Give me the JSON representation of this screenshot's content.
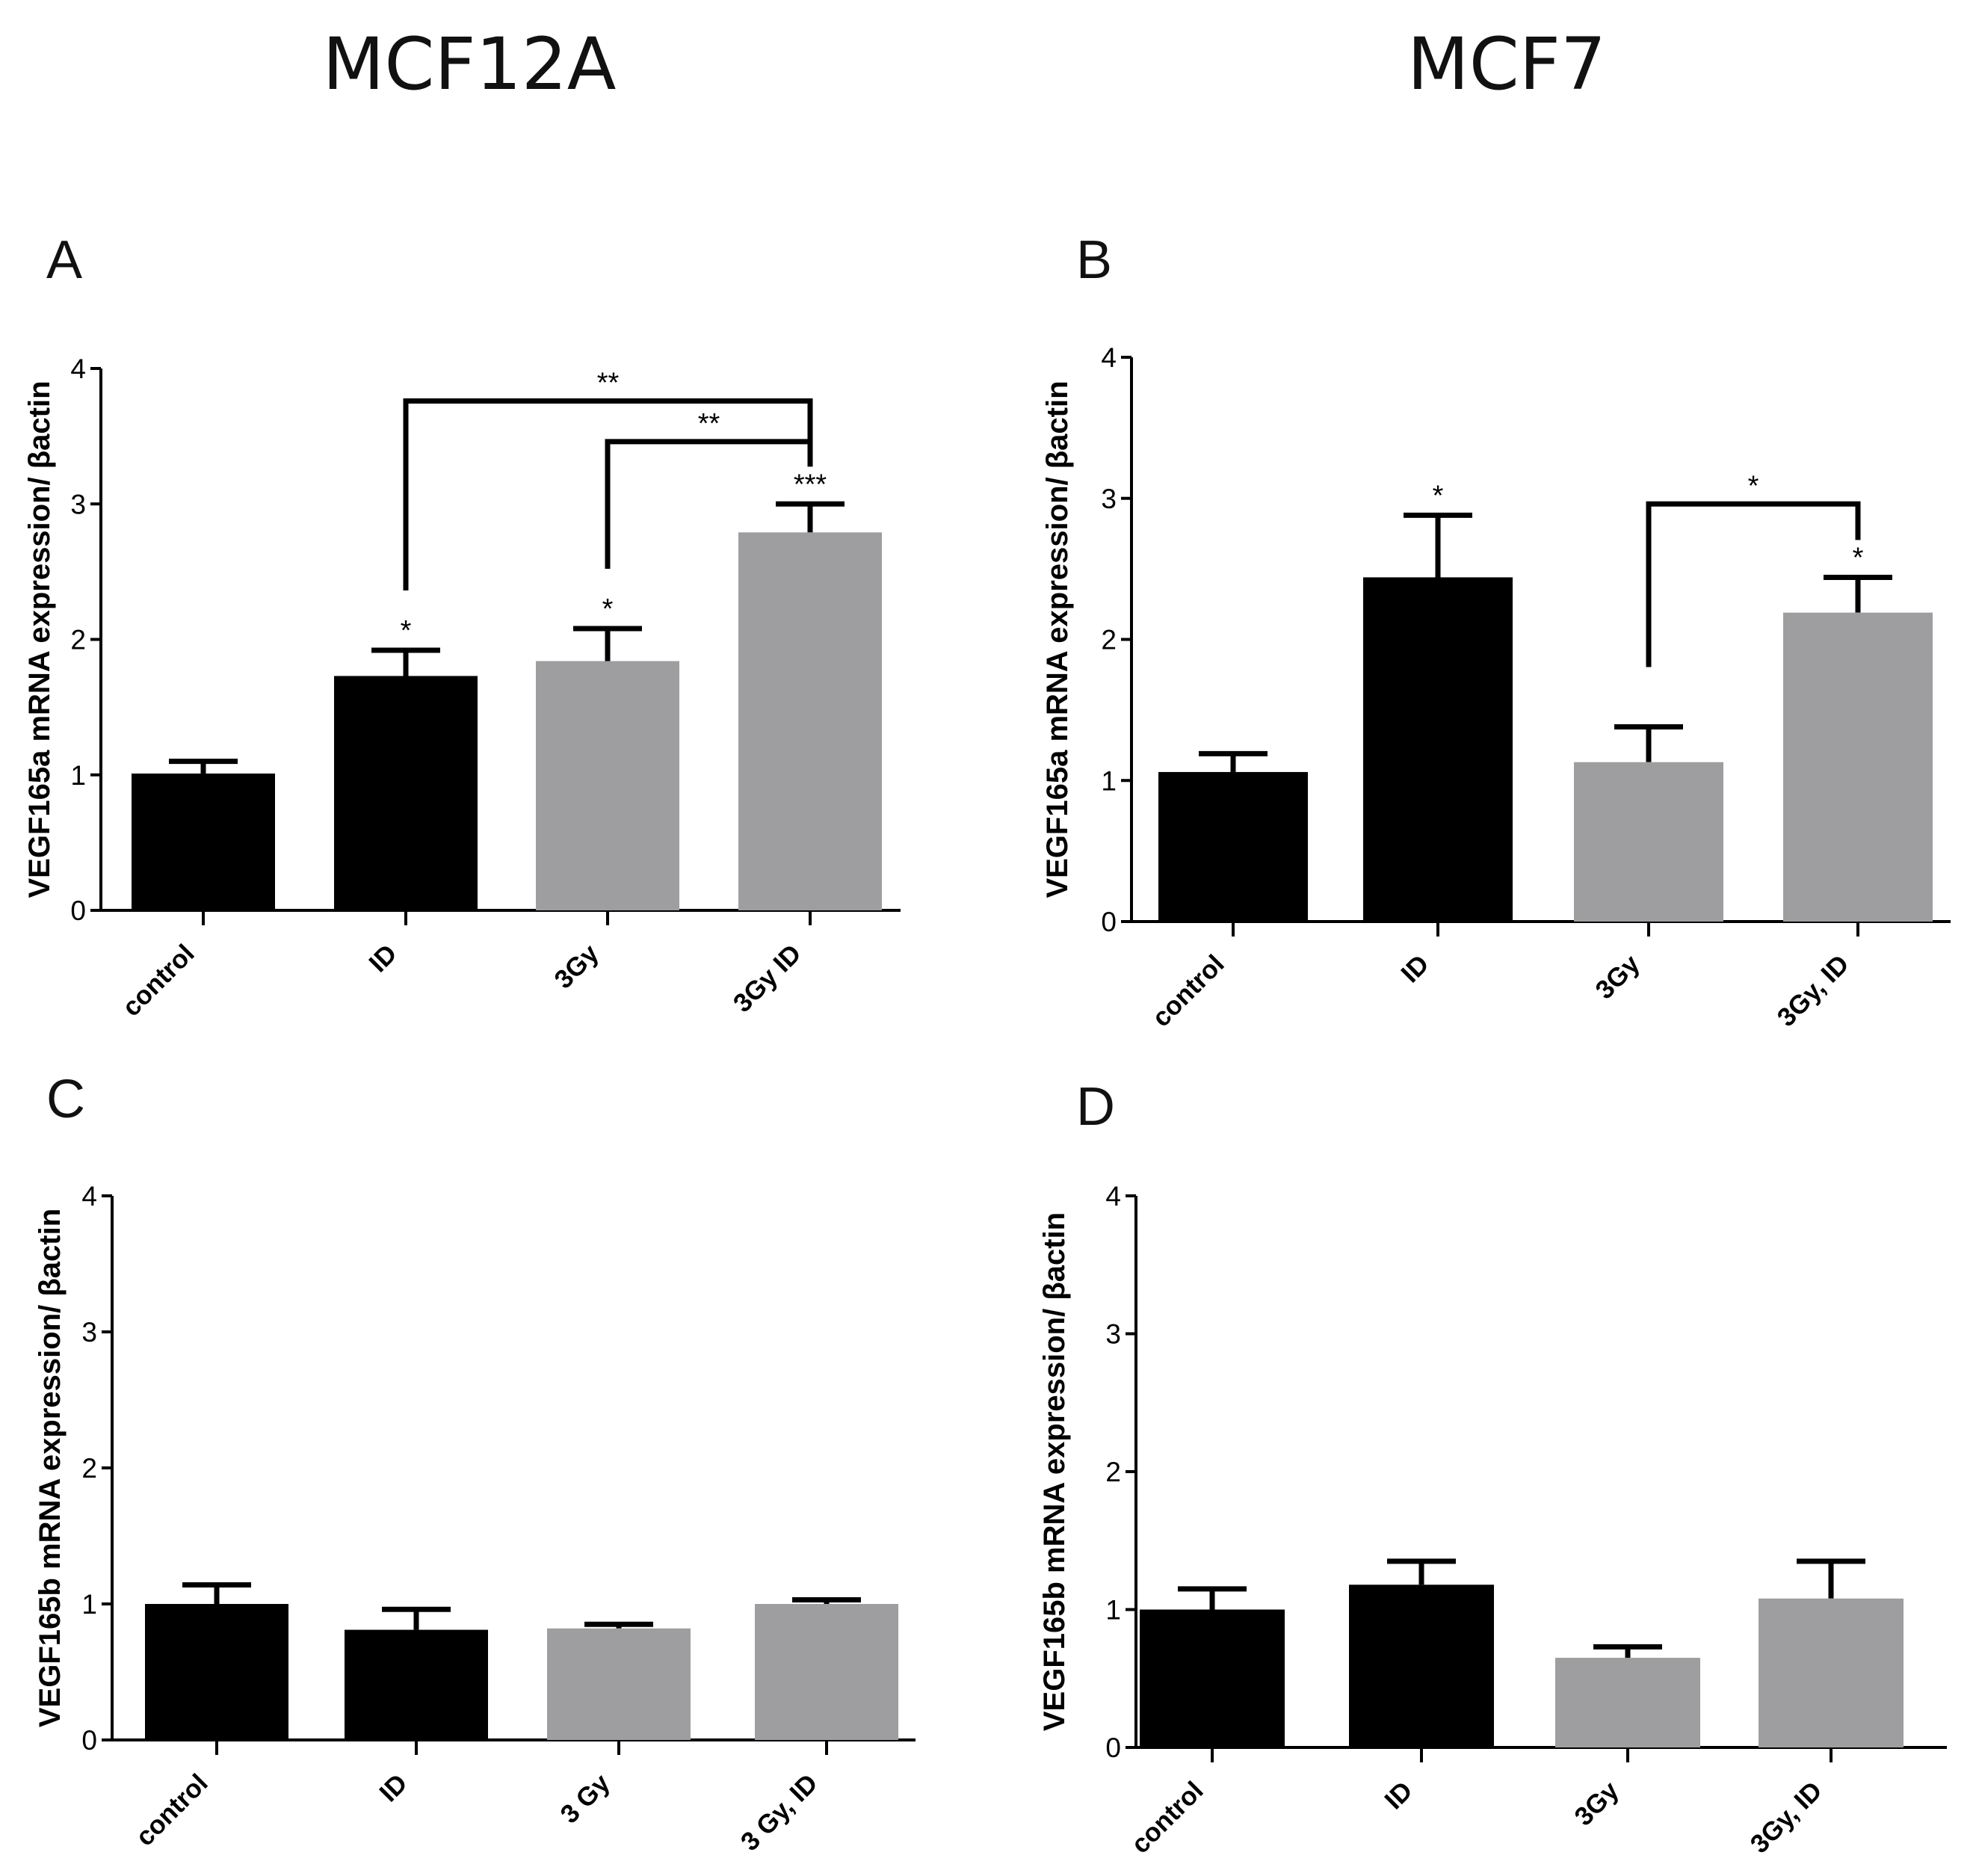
{
  "columns": [
    "MCF12A",
    "MCF7"
  ],
  "chart_data": [
    {
      "type": "bar",
      "panel": "A",
      "ylabel": "VEGF165a mRNA expression/ βactin",
      "categories": [
        "control",
        "ID",
        "3Gy",
        "3Gy ID"
      ],
      "values": [
        1.01,
        1.73,
        1.84,
        2.79
      ],
      "errors": [
        0.09,
        0.19,
        0.24,
        0.21
      ],
      "colors": [
        "#000000",
        "#000000",
        "#9e9ea1",
        "#9e9ea1"
      ],
      "annotations": [
        "",
        "*",
        "*",
        "***"
      ],
      "brackets": [
        {
          "from": 1,
          "to": 3,
          "y": 3.76,
          "label": "**"
        },
        {
          "from": 2,
          "to": 3,
          "y": 3.46,
          "label": "**"
        }
      ],
      "ylim": [
        0,
        4
      ],
      "yticks": [
        0,
        1,
        2,
        3,
        4
      ]
    },
    {
      "type": "bar",
      "panel": "B",
      "ylabel": "VEGF165a mRNA expression/ βactin",
      "categories": [
        "control",
        "ID",
        "3Gy",
        "3Gy, ID"
      ],
      "values": [
        1.06,
        2.44,
        1.13,
        2.19
      ],
      "errors": [
        0.13,
        0.44,
        0.25,
        0.25
      ],
      "colors": [
        "#000000",
        "#000000",
        "#9e9ea1",
        "#9e9ea1"
      ],
      "annotations": [
        "",
        "*",
        "",
        "*"
      ],
      "brackets": [
        {
          "from": 2,
          "to": 3,
          "y": 2.96,
          "label": "*"
        }
      ],
      "ylim": [
        0,
        4
      ],
      "yticks": [
        0,
        1,
        2,
        3,
        4
      ]
    },
    {
      "type": "bar",
      "panel": "C",
      "ylabel": "VEGF165b mRNA expression/ βactin",
      "categories": [
        "control",
        "ID",
        "3 Gy",
        "3 Gy, ID"
      ],
      "values": [
        1.0,
        0.81,
        0.82,
        1.0
      ],
      "errors": [
        0.14,
        0.15,
        0.03,
        0.03
      ],
      "colors": [
        "#000000",
        "#000000",
        "#9e9ea1",
        "#9e9ea1"
      ],
      "annotations": [
        "",
        "",
        "",
        ""
      ],
      "brackets": [],
      "ylim": [
        0,
        4
      ],
      "yticks": [
        0,
        1,
        2,
        3,
        4
      ]
    },
    {
      "type": "bar",
      "panel": "D",
      "ylabel": "VEGF165b mRNA expression/ βactin",
      "categories": [
        "control",
        "ID",
        "3Gy",
        "3Gy, ID"
      ],
      "values": [
        1.0,
        1.18,
        0.65,
        1.08
      ],
      "errors": [
        0.15,
        0.17,
        0.08,
        0.27
      ],
      "colors": [
        "#000000",
        "#000000",
        "#9e9ea1",
        "#9e9ea1"
      ],
      "annotations": [
        "",
        "",
        "",
        ""
      ],
      "brackets": [],
      "ylim": [
        0,
        4
      ],
      "yticks": [
        0,
        1,
        2,
        3,
        4
      ]
    }
  ]
}
